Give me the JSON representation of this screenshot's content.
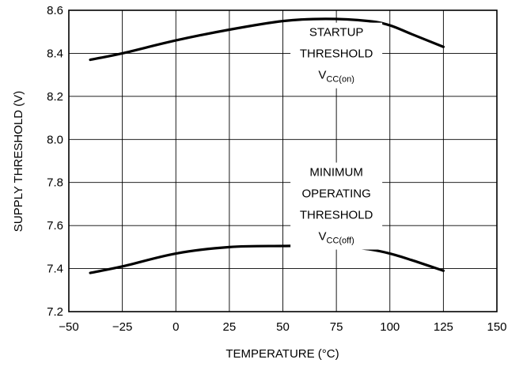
{
  "chart_data": {
    "type": "line",
    "title": "",
    "xlabel": "TEMPERATURE (°C)",
    "ylabel": "SUPPLY THRESHOLD (V)",
    "xlim": [
      -50,
      150
    ],
    "ylim": [
      7.2,
      8.6
    ],
    "x_ticks": [
      -50,
      -25,
      0,
      25,
      50,
      75,
      100,
      125,
      150
    ],
    "x_tick_labels": [
      "−50",
      "−25",
      "0",
      "25",
      "50",
      "75",
      "100",
      "125",
      "150"
    ],
    "y_ticks": [
      7.2,
      7.4,
      7.6,
      7.8,
      8.0,
      8.2,
      8.4,
      8.6
    ],
    "y_tick_labels": [
      "7.2",
      "7.4",
      "7.6",
      "7.8",
      "8.0",
      "8.2",
      "8.4",
      "8.6"
    ],
    "grid": true,
    "series": [
      {
        "x": [
          -40,
          -25,
          0,
          25,
          50,
          70,
          90,
          100,
          110,
          125
        ],
        "values": [
          8.37,
          8.4,
          8.46,
          8.51,
          8.55,
          8.56,
          8.55,
          8.53,
          8.49,
          8.43
        ]
      },
      {
        "x": [
          -40,
          -25,
          0,
          25,
          50,
          75,
          90,
          100,
          110,
          125
        ],
        "values": [
          7.38,
          7.41,
          7.47,
          7.5,
          7.505,
          7.505,
          7.49,
          7.47,
          7.44,
          7.39
        ]
      }
    ],
    "annotations": [
      {
        "lines": [
          "STARTUP",
          "THRESHOLD"
        ],
        "symbol": "V",
        "subscript": "CC(on)",
        "x": 75,
        "y_top": 8.48
      },
      {
        "lines": [
          "MINIMUM",
          "OPERATING",
          "THRESHOLD"
        ],
        "symbol": "V",
        "subscript": "CC(off)",
        "x": 75,
        "y_top": 7.83
      }
    ]
  }
}
